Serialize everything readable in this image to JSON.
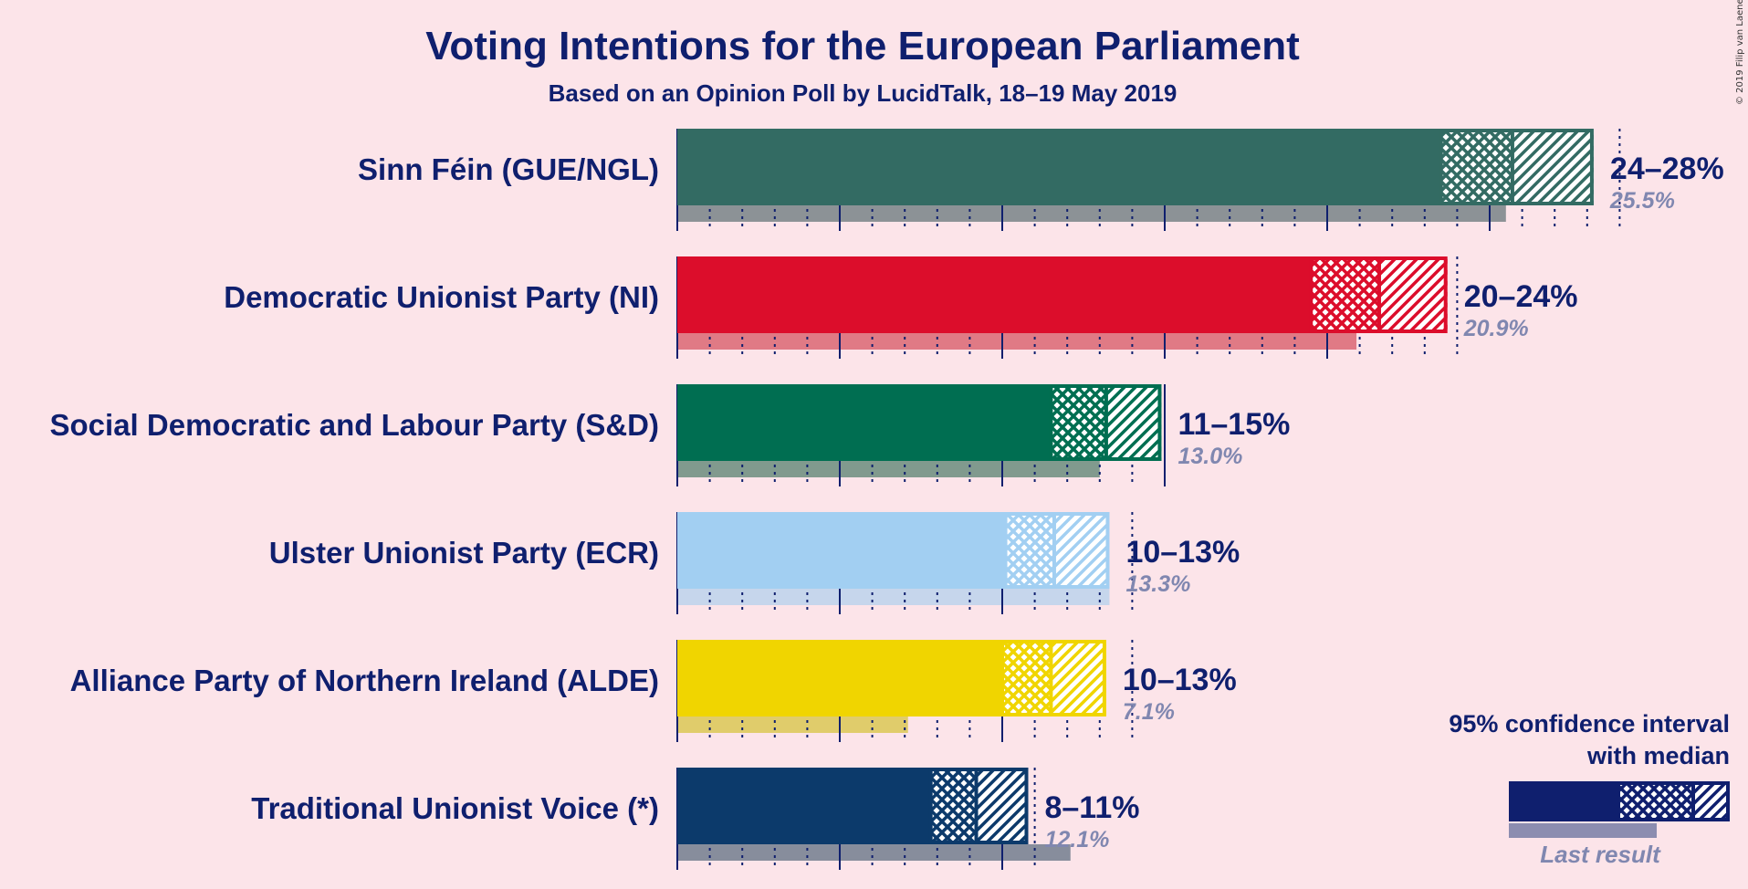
{
  "chart_data": {
    "type": "bar",
    "title": "Voting Intentions for the European Parliament",
    "subtitle": "Based on an Opinion Poll by LucidTalk, 18–19 May 2019",
    "copyright": "© 2019 Filip van Laenen",
    "xlim": [
      0,
      28
    ],
    "series": [
      {
        "name": "Sinn Féin (GUE/NGL)",
        "color": "#336b63",
        "ci_low": 23.5,
        "median": 25.7,
        "ci_high": 28.2,
        "range_label": "24–28%",
        "last_label": "25.5%",
        "last_result": 25.5
      },
      {
        "name": "Democratic Unionist Party (NI)",
        "color": "#dc0d2b",
        "ci_low": 19.5,
        "median": 21.6,
        "ci_high": 23.7,
        "range_label": "20–24%",
        "last_label": "20.9%",
        "last_result": 20.9
      },
      {
        "name": "Social Democratic and Labour Party (S&D)",
        "color": "#006e51",
        "ci_low": 11.5,
        "median": 13.2,
        "ci_high": 14.9,
        "range_label": "11–15%",
        "last_label": "13.0%",
        "last_result": 13.0
      },
      {
        "name": "Ulster Unionist Party (ECR)",
        "color": "#a2cff2",
        "ci_low": 10.1,
        "median": 11.6,
        "ci_high": 13.3,
        "range_label": "10–13%",
        "last_label": "13.3%",
        "last_result": 13.3
      },
      {
        "name": "Alliance Party of Northern Ireland (ALDE)",
        "color": "#f0d500",
        "ci_low": 10.0,
        "median": 11.5,
        "ci_high": 13.2,
        "range_label": "10–13%",
        "last_label": "7.1%",
        "last_result": 7.1
      },
      {
        "name": "Traditional Unionist Voice (*)",
        "color": "#0c3a6b",
        "ci_low": 7.8,
        "median": 9.2,
        "ci_high": 10.8,
        "range_label": "8–11%",
        "last_label": "12.1%",
        "last_result": 12.1
      }
    ],
    "legend": {
      "line1": "95% confidence interval",
      "line2": "with median",
      "last": "Last result",
      "color": "#0f1f6e",
      "placement": "bottom-right"
    },
    "last_result_colors": [
      "#8c9296",
      "#e07a85",
      "#819a8e",
      "#c6d6ec",
      "#e0cc6b",
      "#878d9c"
    ]
  }
}
